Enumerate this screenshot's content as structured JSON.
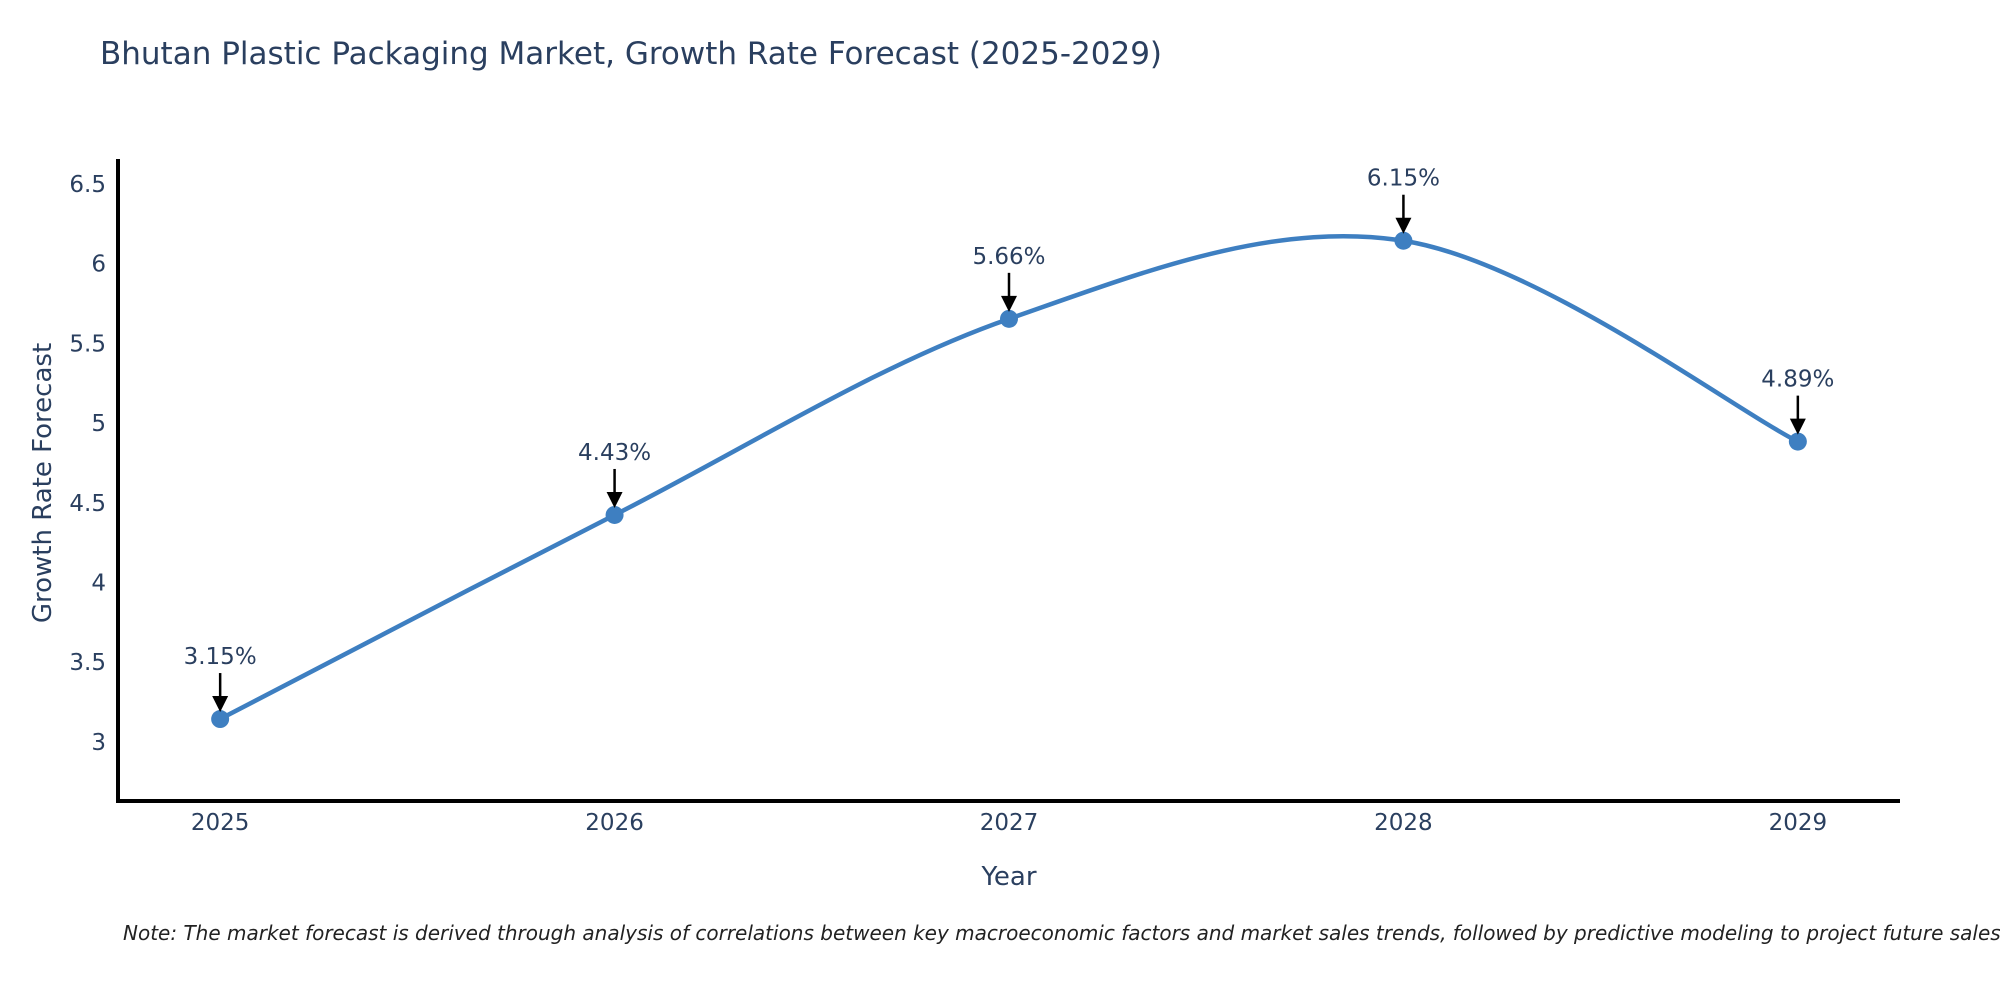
{
  "chart_data": {
    "type": "line",
    "title": "Bhutan Plastic Packaging Market, Growth Rate Forecast (2025-2029)",
    "xlabel": "Year",
    "ylabel": "Growth Rate Forecast",
    "x": [
      2025,
      2026,
      2027,
      2028,
      2029
    ],
    "values": [
      3.15,
      4.43,
      5.66,
      6.15,
      4.89
    ],
    "point_labels": [
      "3.15%",
      "4.43%",
      "5.66%",
      "6.15%",
      "4.89%"
    ],
    "xtick_labels": [
      "2025",
      "2026",
      "2027",
      "2028",
      "2029"
    ],
    "yticks": [
      3,
      3.5,
      4,
      4.5,
      5,
      5.5,
      6,
      6.5
    ],
    "ytick_labels": [
      "3",
      "3.5",
      "4",
      "4.5",
      "5",
      "5.5",
      "6",
      "6.5"
    ],
    "xlim": [
      2024.741,
      2029.259
    ],
    "ylim": [
      2.636,
      6.65
    ],
    "grid": false,
    "legend": "none",
    "line_shape": "spline",
    "line_color": "#3e7fc1",
    "marker_color": "#3e7fc1",
    "axis_line_color": "#000000",
    "annotation_arrow_color": "#000000",
    "text_color": "#2a3f5f",
    "note": "Note: The market forecast is derived through analysis of correlations between key macroeconomic factors and market sales trends, followed by predictive modeling to project future sales"
  }
}
